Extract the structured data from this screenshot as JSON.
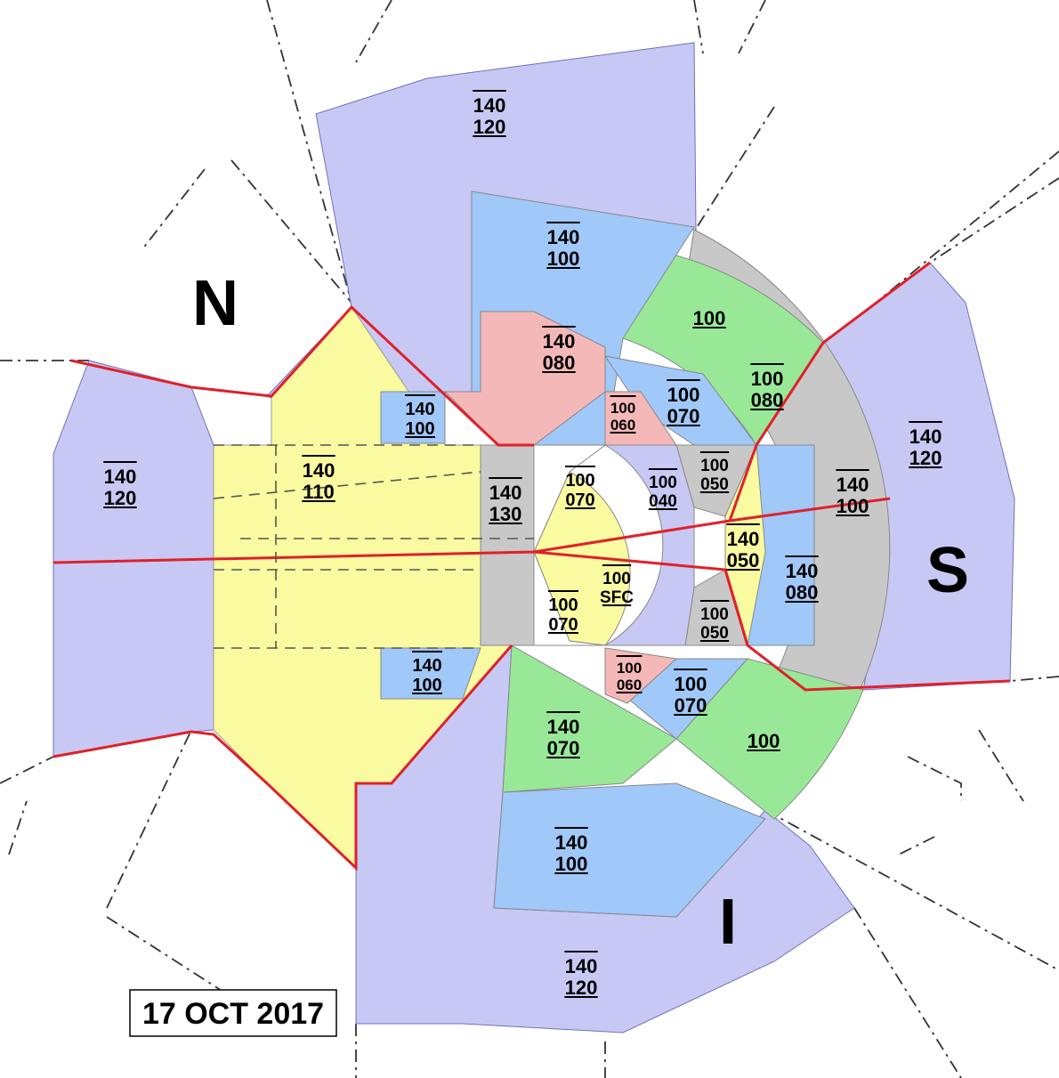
{
  "map": {
    "sectors": [
      "N",
      "S",
      "I"
    ],
    "date": "17 OCT 2017",
    "labels": [
      {
        "top": "140",
        "bottom": "120"
      },
      {
        "top": "140",
        "bottom": "100"
      },
      {
        "text": "100"
      },
      {
        "top": "140",
        "bottom": "080"
      },
      {
        "top": "100",
        "bottom": "080"
      },
      {
        "top": "140",
        "bottom": "100"
      },
      {
        "top": "100",
        "bottom": "070"
      },
      {
        "top": "100",
        "bottom": "060"
      },
      {
        "top": "140",
        "bottom": "110"
      },
      {
        "top": "140",
        "bottom": "120"
      },
      {
        "top": "100",
        "bottom": "070"
      },
      {
        "top": "100",
        "bottom": "040"
      },
      {
        "top": "100",
        "bottom": "050"
      },
      {
        "top": "140",
        "bottom": "130"
      },
      {
        "top": "140",
        "bottom": "100"
      },
      {
        "top": "140",
        "bottom": "120"
      },
      {
        "top": "140",
        "bottom": "050"
      },
      {
        "top": "140",
        "bottom": "080"
      },
      {
        "top": "100",
        "bottom": "SFC"
      },
      {
        "top": "100",
        "bottom": "070"
      },
      {
        "top": "100",
        "bottom": "050"
      },
      {
        "top": "140",
        "bottom": "100"
      },
      {
        "top": "100",
        "bottom": "060"
      },
      {
        "top": "100",
        "bottom": "070"
      },
      {
        "top": "140",
        "bottom": "070"
      },
      {
        "text": "100"
      },
      {
        "top": "140",
        "bottom": "100"
      },
      {
        "top": "140",
        "bottom": "120"
      }
    ]
  }
}
